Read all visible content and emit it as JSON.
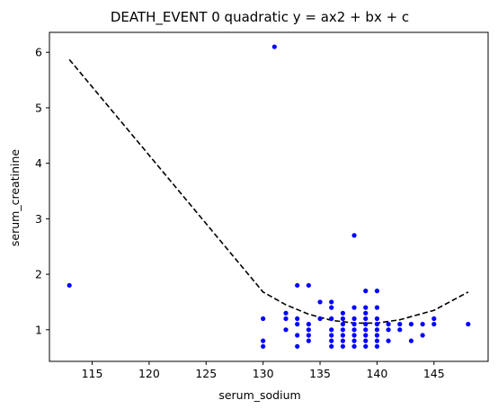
{
  "chart_data": {
    "type": "scatter",
    "title": "DEATH_EVENT 0 quadratic y = ax2 + bx + c",
    "xlabel": "serum_sodium",
    "ylabel": "serum_creatinine",
    "xlim": [
      111.25,
      149.75
    ],
    "ylim": [
      0.43,
      6.36
    ],
    "xticks": [
      115,
      120,
      125,
      130,
      135,
      140,
      145
    ],
    "yticks": [
      1,
      2,
      3,
      4,
      5,
      6
    ],
    "grid": false,
    "series": [
      {
        "kind": "points",
        "color": "#0000ff",
        "marker": "circle",
        "points": [
          [
            113,
            1.8
          ],
          [
            131,
            6.1
          ],
          [
            138,
            2.7
          ],
          [
            148,
            1.1
          ],
          [
            130,
            1.2
          ],
          [
            130,
            0.8
          ],
          [
            130,
            0.7
          ],
          [
            132,
            1.3
          ],
          [
            132,
            1.2
          ],
          [
            132,
            1.0
          ],
          [
            133,
            1.8
          ],
          [
            133,
            1.2
          ],
          [
            133,
            1.1
          ],
          [
            133,
            0.9
          ],
          [
            133,
            0.7
          ],
          [
            134,
            1.8
          ],
          [
            134,
            1.1
          ],
          [
            134,
            1.0
          ],
          [
            134,
            0.9
          ],
          [
            134,
            0.8
          ],
          [
            135,
            1.5
          ],
          [
            135,
            1.2
          ],
          [
            136,
            1.5
          ],
          [
            136,
            1.4
          ],
          [
            136,
            1.2
          ],
          [
            136,
            1.0
          ],
          [
            136,
            0.9
          ],
          [
            136,
            0.8
          ],
          [
            136,
            0.7
          ],
          [
            137,
            1.3
          ],
          [
            137,
            1.2
          ],
          [
            137,
            1.1
          ],
          [
            137,
            1.0
          ],
          [
            137,
            0.9
          ],
          [
            137,
            0.8
          ],
          [
            137,
            0.7
          ],
          [
            138,
            1.4
          ],
          [
            138,
            1.2
          ],
          [
            138,
            1.1
          ],
          [
            138,
            1.0
          ],
          [
            138,
            0.9
          ],
          [
            138,
            0.8
          ],
          [
            138,
            0.7
          ],
          [
            139,
            1.7
          ],
          [
            139,
            1.4
          ],
          [
            139,
            1.3
          ],
          [
            139,
            1.2
          ],
          [
            139,
            1.1
          ],
          [
            139,
            1.0
          ],
          [
            139,
            0.9
          ],
          [
            139,
            0.8
          ],
          [
            139,
            0.7
          ],
          [
            140,
            1.7
          ],
          [
            140,
            1.4
          ],
          [
            140,
            1.2
          ],
          [
            140,
            1.1
          ],
          [
            140,
            1.0
          ],
          [
            140,
            0.9
          ],
          [
            140,
            0.8
          ],
          [
            140,
            0.7
          ],
          [
            141,
            1.1
          ],
          [
            141,
            1.0
          ],
          [
            141,
            0.8
          ],
          [
            142,
            1.1
          ],
          [
            142,
            1.0
          ],
          [
            143,
            1.1
          ],
          [
            143,
            0.8
          ],
          [
            144,
            1.1
          ],
          [
            144,
            0.9
          ],
          [
            145,
            1.2
          ],
          [
            145,
            1.1
          ]
        ]
      },
      {
        "kind": "fit-line",
        "color": "#000000",
        "style": "dashed",
        "points": [
          [
            113,
            5.87
          ],
          [
            130,
            1.68
          ],
          [
            132,
            1.45
          ],
          [
            134,
            1.28
          ],
          [
            136,
            1.17
          ],
          [
            138,
            1.12
          ],
          [
            140,
            1.12
          ],
          [
            142,
            1.18
          ],
          [
            145,
            1.35
          ],
          [
            148,
            1.68
          ]
        ]
      }
    ]
  }
}
